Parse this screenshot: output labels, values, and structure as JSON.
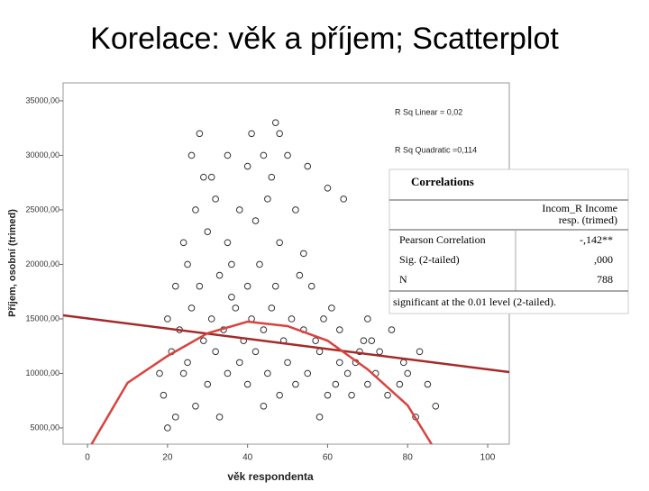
{
  "chart_data": {
    "type": "scatter",
    "title": "Korelace: věk a příjem; Scatterplot",
    "xlabel": "věk respondenta",
    "ylabel": "Příjem, osobní (trimed)",
    "annotations": [
      "R Sq Linear = 0,02",
      "R Sq Quadratic =0,114"
    ],
    "xlim": [
      -6.1,
      105.4
    ],
    "ylim": [
      3510,
      36650
    ],
    "xticks": [
      0,
      20,
      40,
      60,
      80,
      100
    ],
    "yticks": [
      {
        "value": 5000,
        "label": "5000,00"
      },
      {
        "value": 10000,
        "label": "10000,00"
      },
      {
        "value": 15000,
        "label": "15000,00"
      },
      {
        "value": 20000,
        "label": "20000,00"
      },
      {
        "value": 25000,
        "label": "25000,00"
      },
      {
        "value": 30000,
        "label": "30000,00"
      },
      {
        "value": 35000,
        "label": "35000,00"
      }
    ],
    "color": "#333333",
    "x": [
      20,
      22,
      19,
      24,
      21,
      25,
      27,
      30,
      32,
      35,
      38,
      40,
      42,
      45,
      48,
      50,
      52,
      55,
      58,
      60,
      62,
      65,
      67,
      70,
      72,
      75,
      78,
      80,
      66,
      68,
      20,
      23,
      26,
      29,
      31,
      34,
      37,
      39,
      41,
      44,
      46,
      49,
      51,
      54,
      57,
      59,
      63,
      61,
      69,
      73,
      22,
      25,
      28,
      33,
      36,
      40,
      43,
      47,
      53,
      56,
      24,
      30,
      35,
      42,
      48,
      27,
      32,
      38,
      45,
      52,
      29,
      31,
      40,
      46,
      60,
      26,
      35,
      44,
      50,
      28,
      41,
      48,
      55,
      64,
      70,
      76,
      83,
      85,
      87,
      82,
      18,
      33,
      44,
      58,
      63,
      71,
      79,
      36,
      54,
      47
    ],
    "y": [
      5000,
      6000,
      8000,
      10000,
      12000,
      11000,
      7000,
      9000,
      12000,
      10000,
      11000,
      9000,
      12000,
      10000,
      8000,
      11000,
      9000,
      10000,
      12000,
      8000,
      9000,
      10000,
      11000,
      9000,
      10000,
      8000,
      9000,
      10000,
      8000,
      12000,
      15000,
      14000,
      16000,
      13000,
      15000,
      14000,
      16000,
      13000,
      15000,
      14000,
      16000,
      13000,
      15000,
      14000,
      13000,
      15000,
      14000,
      16000,
      13000,
      12000,
      18000,
      20000,
      18000,
      19000,
      20000,
      18000,
      20000,
      18000,
      19000,
      18000,
      22000,
      23000,
      22000,
      24000,
      22000,
      25000,
      26000,
      25000,
      26000,
      25000,
      28000,
      28000,
      29000,
      28000,
      27000,
      30000,
      30000,
      30000,
      30000,
      32000,
      32000,
      32000,
      29000,
      26000,
      15000,
      14000,
      12000,
      9000,
      7000,
      6000,
      10000,
      6000,
      7000,
      6000,
      11000,
      13000,
      11000,
      17000,
      21000,
      33000
    ],
    "fits": {
      "linear": {
        "color": "#a52a2a",
        "x": [
          -6.1,
          105.4
        ],
        "y": [
          15330,
          10120
        ]
      },
      "quadratic": {
        "color": "#d9423f",
        "x": [
          1,
          10,
          20,
          30,
          40,
          50,
          60,
          70,
          80,
          86
        ],
        "y": [
          3500,
          9130,
          11600,
          13680,
          14750,
          14340,
          13000,
          10370,
          7070,
          3500
        ]
      }
    }
  },
  "correlations_table": {
    "title": "Correlations",
    "column_header": [
      "Incom_R Income",
      "resp. (trimed)"
    ],
    "rows": [
      [
        "Pearson Correlation",
        "-,142**"
      ],
      [
        "Sig. (2-tailed)",
        ",000"
      ],
      [
        "N",
        "788"
      ]
    ],
    "footnote": "significant at the 0.01 level (2-tailed)."
  }
}
